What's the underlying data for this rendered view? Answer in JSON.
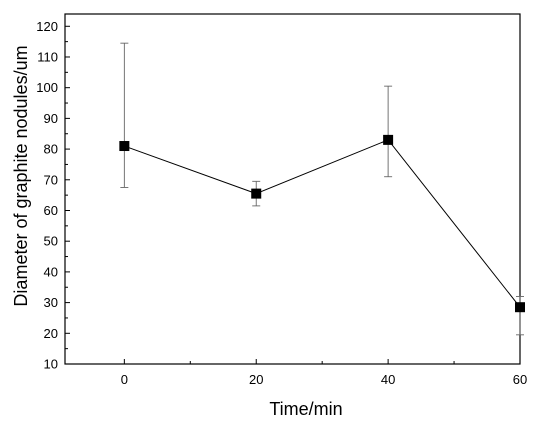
{
  "chart_data": {
    "type": "scatter",
    "title": "",
    "xlabel": "Time/min",
    "ylabel": "Diameter of graphite nodules/um",
    "xlim": [
      -9,
      60
    ],
    "ylim": [
      10,
      124
    ],
    "xticks": [
      0,
      20,
      40,
      60
    ],
    "yticks": [
      10,
      20,
      30,
      40,
      50,
      60,
      70,
      80,
      90,
      100,
      110,
      120
    ],
    "grid": false,
    "legend": "none",
    "series": [
      {
        "x": [
          0,
          20,
          40,
          60
        ],
        "y": [
          81,
          65.5,
          83,
          28.5
        ],
        "error_low": [
          67.5,
          61.5,
          71,
          19.5
        ],
        "error_high": [
          114.5,
          69.5,
          100.5,
          32
        ],
        "marker": "square",
        "line": true,
        "color": "#000000"
      }
    ]
  }
}
